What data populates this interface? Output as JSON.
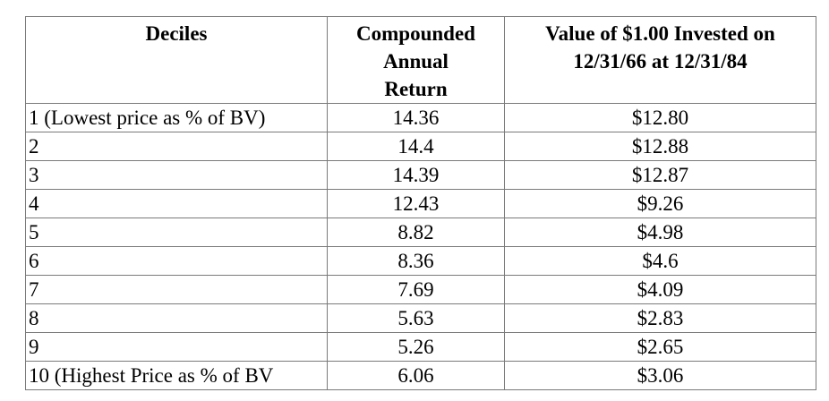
{
  "table": {
    "headers": {
      "deciles": "Deciles",
      "return_line1": "Compounded",
      "return_line2": "Annual",
      "return_line3": "Return",
      "value_line1": "Value of $1.00 Invested on",
      "value_line2": "12/31/66 at 12/31/84"
    },
    "rows": [
      {
        "decile": "1 (Lowest price as % of BV)",
        "return": "14.36",
        "value": "$12.80"
      },
      {
        "decile": "2",
        "return": "14.4",
        "value": "$12.88"
      },
      {
        "decile": "3",
        "return": "14.39",
        "value": "$12.87"
      },
      {
        "decile": "4",
        "return": "12.43",
        "value": "$9.26"
      },
      {
        "decile": "5",
        "return": "8.82",
        "value": "$4.98"
      },
      {
        "decile": "6",
        "return": "8.36",
        "value": "$4.6"
      },
      {
        "decile": "7",
        "return": "7.69",
        "value": "$4.09"
      },
      {
        "decile": "8",
        "return": "5.63",
        "value": "$2.83"
      },
      {
        "decile": "9",
        "return": "5.26",
        "value": "$2.65"
      },
      {
        "decile": "10 (Highest Price as % of BV",
        "return": "6.06",
        "value": "$3.06"
      }
    ]
  }
}
